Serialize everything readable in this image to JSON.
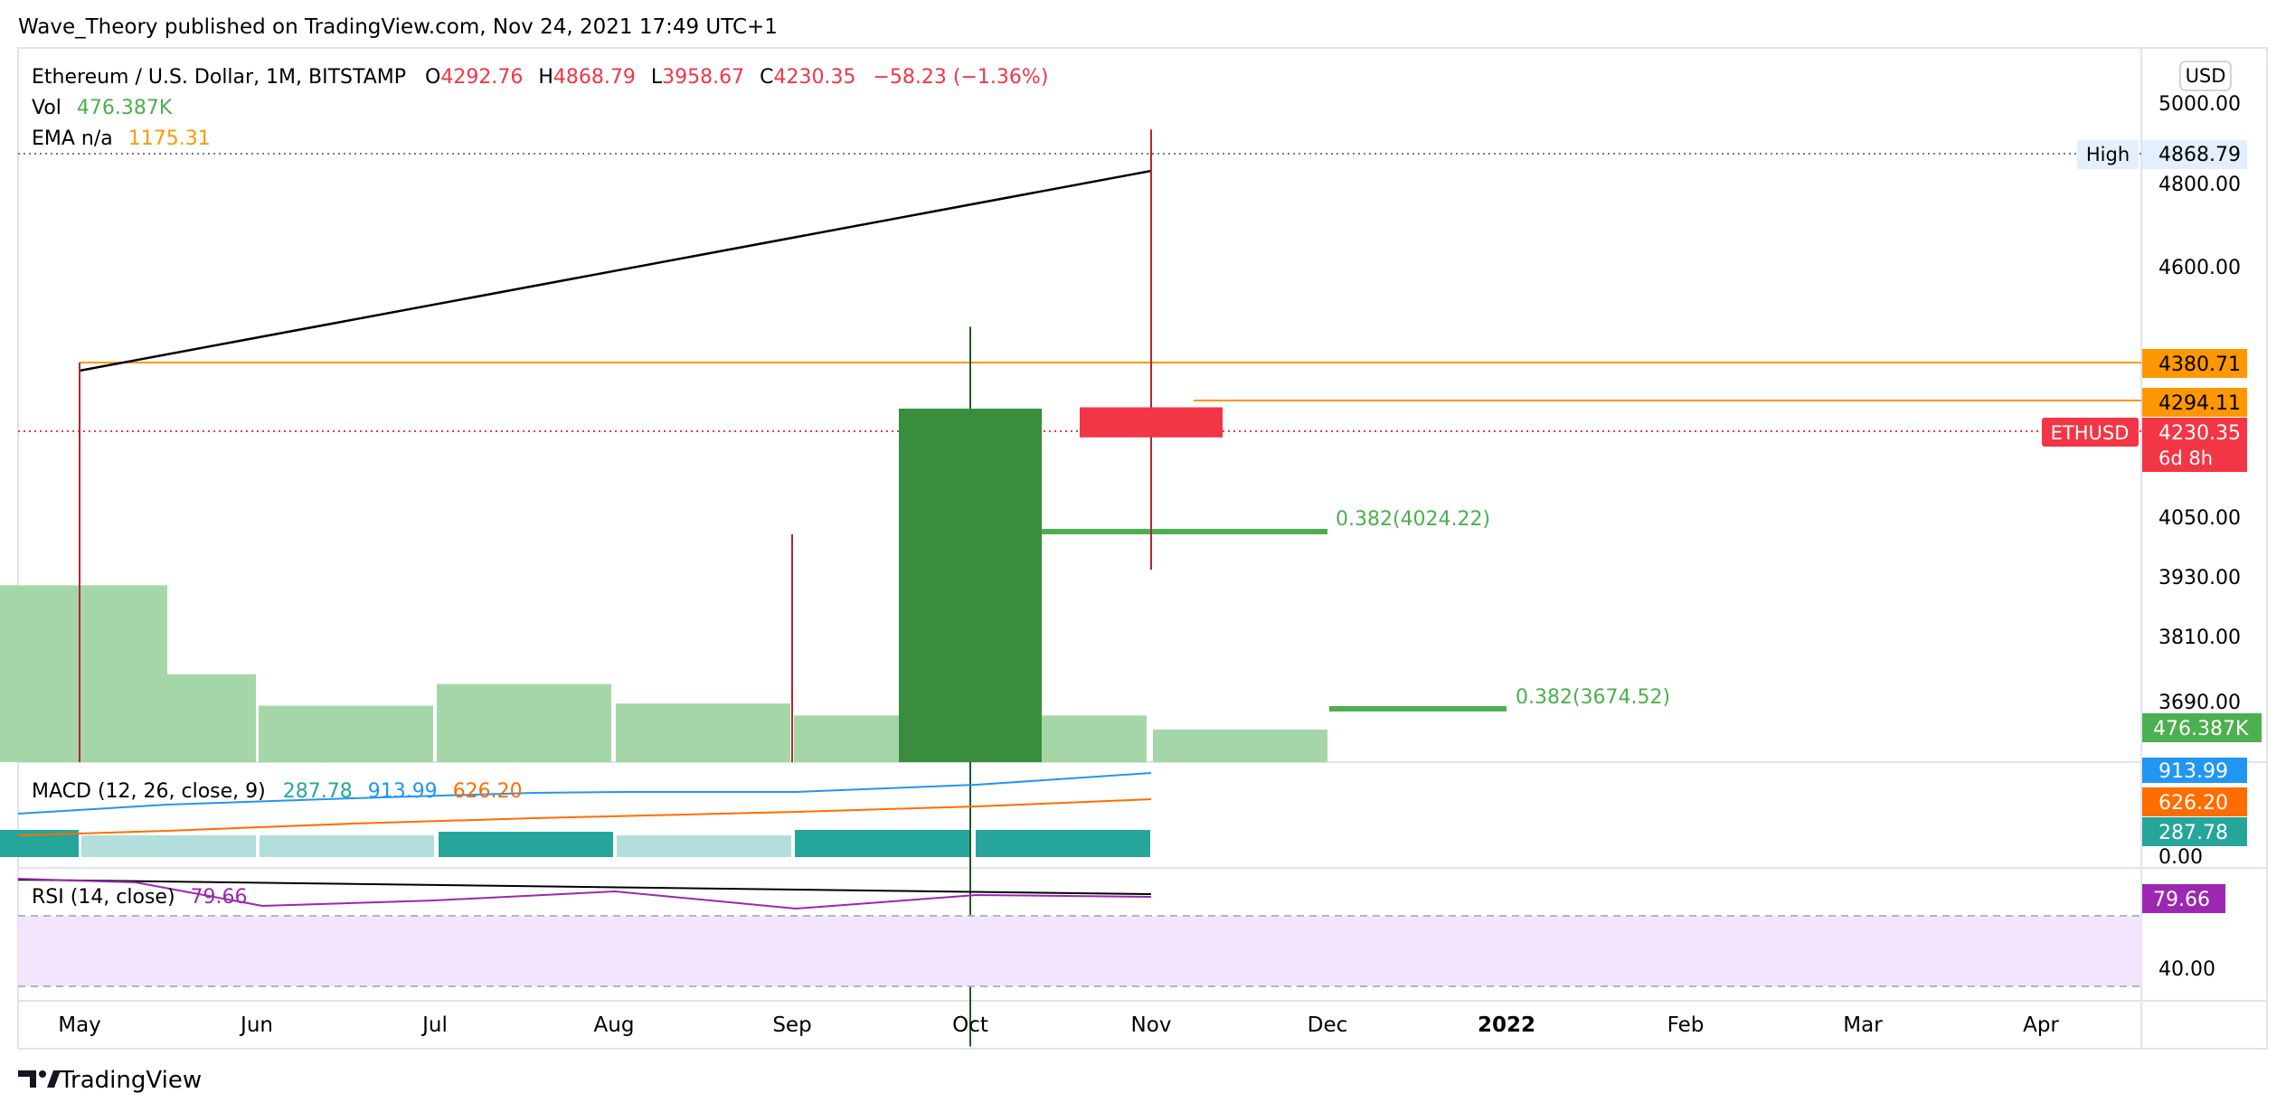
{
  "header": {
    "publisher": "Wave_Theory published on TradingView.com, Nov 24, 2021 17:49 UTC+1"
  },
  "legend": {
    "symbol": "Ethereum / U.S. Dollar, 1M, BITSTAMP",
    "ohlc": [
      {
        "label": "O",
        "value": "4292.76"
      },
      {
        "label": "H",
        "value": "4868.79"
      },
      {
        "label": "L",
        "value": "3958.67"
      },
      {
        "label": "C",
        "value": "4230.35"
      }
    ],
    "change": "−58.23 (−1.36%)",
    "vol_label": "Vol",
    "vol_value": "476.387K",
    "ema_label": "EMA n/a",
    "ema_value": "1175.31"
  },
  "price_scale": {
    "currency": "USD",
    "ticks": [
      "5000.00",
      "4800.00",
      "4600.00",
      "4050.00",
      "3930.00",
      "3810.00",
      "3690.00"
    ],
    "labels": {
      "high_tag": "High",
      "high_value": "4868.79",
      "level_upper": "4380.71",
      "level_lower": "4294.11",
      "symbol_tag": "ETHUSD",
      "last_price": "4230.35",
      "countdown": "6d 8h",
      "volume": "476.387K"
    }
  },
  "macd": {
    "title": "MACD (12, 26, close, 9)",
    "histogram_value": "287.78",
    "macd_value": "913.99",
    "signal_value": "626.20",
    "scale_ticks": [
      "0.00"
    ]
  },
  "rsi": {
    "title": "RSI (14, close)",
    "value": "79.66",
    "scale_ticks": [
      "40.00"
    ]
  },
  "time_axis": {
    "labels": [
      "May",
      "Jun",
      "Jul",
      "Aug",
      "Sep",
      "Oct",
      "Nov",
      "Dec",
      "2022",
      "Feb",
      "Mar",
      "Apr"
    ]
  },
  "annotations": {
    "fib_upper": "0.382(4024.22)",
    "fib_lower": "0.382(3674.52)"
  },
  "footer": {
    "brand": "TradingView"
  },
  "colors": {
    "bull": "#388e3c",
    "bear": "#f23645",
    "volume": "#a5d6a7",
    "orange_line": "#ff9800",
    "fib_line": "#4caf50",
    "macd_line": "#2196f3",
    "signal_line": "#ff6d00",
    "hist_dark": "#26a69a",
    "hist_light": "#b2dfdb",
    "rsi_line": "#9c27b0",
    "rsi_band": "#f3e5fd"
  },
  "chart_data": {
    "type": "candlestick",
    "symbol": "ETHUSD",
    "timeframe": "1M",
    "candles": [
      {
        "x": "Sep",
        "open": 3430,
        "high": 4030,
        "low": 3430,
        "close": 3430,
        "wick_only": true
      },
      {
        "x": "Oct",
        "open": 3000,
        "high": 4460,
        "low": 3000,
        "close": 4290
      },
      {
        "x": "Nov",
        "open": 4292.76,
        "high": 4868.79,
        "low": 3958.67,
        "close": 4230.35
      }
    ],
    "volume": [
      {
        "x": "Apr",
        "value": 1.63
      },
      {
        "x": "May",
        "value": 0.81
      },
      {
        "x": "Jun",
        "value": 0.52
      },
      {
        "x": "Jul",
        "value": 0.72
      },
      {
        "x": "Aug",
        "value": 0.54
      },
      {
        "x": "Sep",
        "value": 0.43
      },
      {
        "x": "Oct",
        "value": 0.43
      },
      {
        "x": "Nov",
        "value": 0.3
      }
    ],
    "horizontal_levels": [
      4380.71,
      4294.11
    ],
    "trendline": {
      "from": {
        "x": "May",
        "y": 4370
      },
      "to": {
        "x": "Nov",
        "y": 4830
      }
    },
    "fib_levels": [
      {
        "label": "0.382(4024.22)",
        "value": 4024.22
      },
      {
        "label": "0.382(3674.52)",
        "value": 3674.52
      }
    ],
    "macd": {
      "macd": 913.99,
      "signal": 626.2,
      "histogram": 287.78
    },
    "rsi": {
      "value": 79.66
    },
    "ylim": [
      3580,
      5100
    ]
  }
}
